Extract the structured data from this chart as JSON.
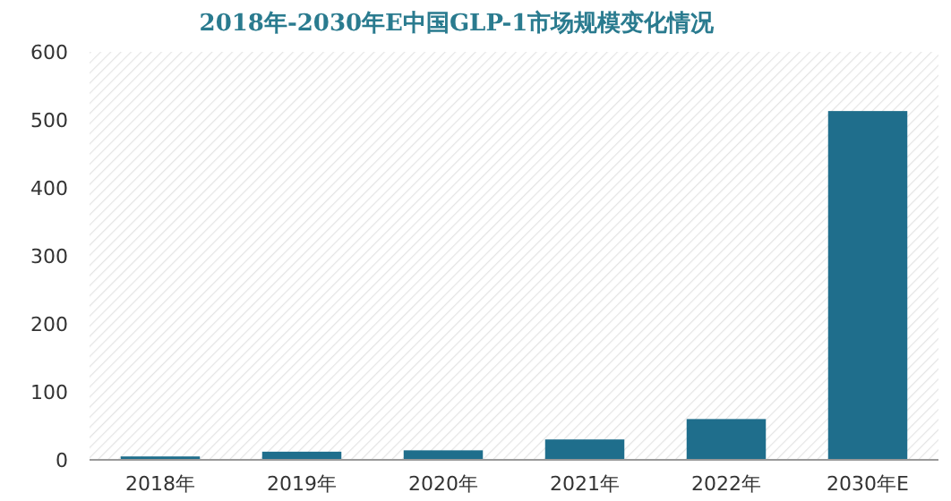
{
  "chart_data": {
    "type": "bar",
    "title": "2018年-2030年E中国GLP-1市场规模变化情况",
    "categories": [
      "2018年",
      "2019年",
      "2020年",
      "2021年",
      "2022年",
      "2030年E"
    ],
    "values": [
      5,
      12,
      14,
      30,
      60,
      513
    ],
    "color": "#1f6e8c",
    "ylim": [
      0,
      600
    ],
    "yticks": [
      0,
      100,
      200,
      300,
      400,
      500,
      600
    ]
  }
}
